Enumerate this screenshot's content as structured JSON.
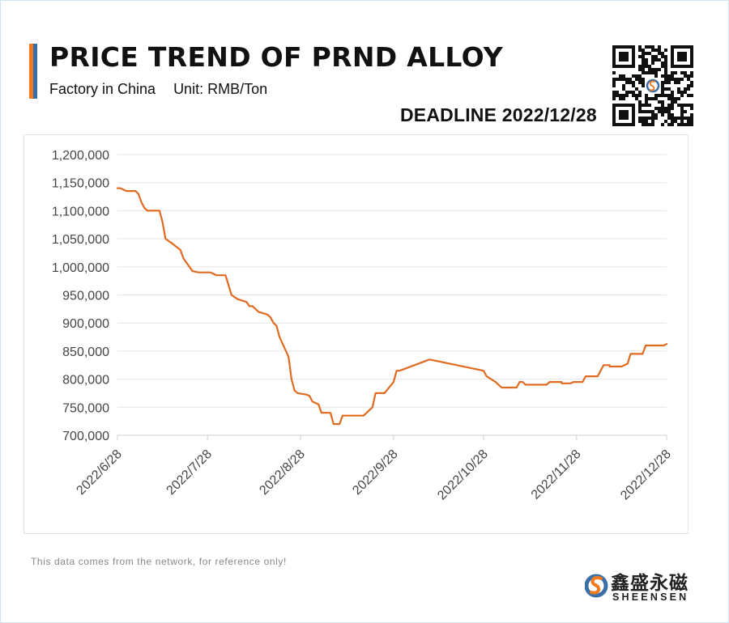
{
  "header": {
    "title": "PRICE TREND OF PRND ALLOY",
    "subtitle_factory": "Factory in China",
    "subtitle_unit": "Unit: RMB/Ton",
    "deadline": "DEADLINE 2022/12/28"
  },
  "footer": {
    "note": "This data comes from the network, for reference only!",
    "brand_cn": "鑫盛永磁",
    "brand_en": "SHEENSEN"
  },
  "colors": {
    "line": "#e06a20",
    "accent_orange": "#f07a20",
    "accent_blue": "#3a6ea8",
    "grid": "#e5e5e5",
    "axis_text": "#444444"
  },
  "icons": {
    "qr": "qr-code-icon",
    "logo": "sheensen-logo-icon"
  },
  "chart_data": {
    "type": "line",
    "title": "PRICE TREND OF PRND ALLOY",
    "xlabel": "",
    "ylabel": "",
    "ylim": [
      700000,
      1200000
    ],
    "y_ticks": [
      700000,
      750000,
      800000,
      850000,
      900000,
      950000,
      1000000,
      1050000,
      1100000,
      1150000,
      1200000
    ],
    "y_tick_labels": [
      "700,000",
      "750,000",
      "800,000",
      "850,000",
      "900,000",
      "950,000",
      "1,000,000",
      "1,050,000",
      "1,100,000",
      "1,150,000",
      "1,200,000"
    ],
    "x_range": [
      "2022-06-28",
      "2022-12-28"
    ],
    "x_tick_labels": [
      "2022/6/28",
      "2022/7/28",
      "2022/8/28",
      "2022/9/28",
      "2022/10/28",
      "2022/11/28",
      "2022/12/28"
    ],
    "x_tick_dates": [
      "2022-06-28",
      "2022-07-28",
      "2022-08-28",
      "2022-09-28",
      "2022-10-28",
      "2022-11-28",
      "2022-12-28"
    ],
    "grid": true,
    "legend": "none",
    "series": [
      {
        "points": [
          [
            "2022-06-28",
            1140000
          ],
          [
            "2022-06-29",
            1140000
          ],
          [
            "2022-06-30",
            1137500
          ],
          [
            "2022-07-01",
            1135000
          ],
          [
            "2022-07-04",
            1135000
          ],
          [
            "2022-07-05",
            1130000
          ],
          [
            "2022-07-06",
            1115000
          ],
          [
            "2022-07-07",
            1105000
          ],
          [
            "2022-07-08",
            1100000
          ],
          [
            "2022-07-12",
            1100000
          ],
          [
            "2022-07-13",
            1080000
          ],
          [
            "2022-07-14",
            1050000
          ],
          [
            "2022-07-16",
            1042500
          ],
          [
            "2022-07-19",
            1030000
          ],
          [
            "2022-07-20",
            1015000
          ],
          [
            "2022-07-22",
            1000000
          ],
          [
            "2022-07-23",
            992500
          ],
          [
            "2022-07-25",
            990000
          ],
          [
            "2022-07-29",
            990000
          ],
          [
            "2022-07-31",
            985000
          ],
          [
            "2022-08-03",
            985000
          ],
          [
            "2022-08-05",
            950000
          ],
          [
            "2022-08-07",
            942500
          ],
          [
            "2022-08-10",
            937500
          ],
          [
            "2022-08-11",
            930000
          ],
          [
            "2022-08-12",
            930000
          ],
          [
            "2022-08-14",
            920000
          ],
          [
            "2022-08-17",
            915000
          ],
          [
            "2022-08-18",
            910000
          ],
          [
            "2022-08-19",
            900000
          ],
          [
            "2022-08-20",
            895000
          ],
          [
            "2022-08-21",
            875000
          ],
          [
            "2022-08-24",
            840000
          ],
          [
            "2022-08-25",
            800000
          ],
          [
            "2022-08-26",
            780000
          ],
          [
            "2022-08-27",
            775000
          ],
          [
            "2022-08-30",
            772500
          ],
          [
            "2022-08-31",
            770000
          ],
          [
            "2022-09-01",
            760000
          ],
          [
            "2022-09-03",
            755000
          ],
          [
            "2022-09-04",
            740000
          ],
          [
            "2022-09-07",
            740000
          ],
          [
            "2022-09-08",
            720000
          ],
          [
            "2022-09-10",
            720000
          ],
          [
            "2022-09-11",
            735000
          ],
          [
            "2022-09-18",
            735000
          ],
          [
            "2022-09-21",
            750000
          ],
          [
            "2022-09-22",
            775000
          ],
          [
            "2022-09-25",
            775000
          ],
          [
            "2022-09-28",
            795000
          ],
          [
            "2022-09-29",
            815000
          ],
          [
            "2022-09-30",
            815000
          ],
          [
            "2022-10-10",
            835000
          ],
          [
            "2022-10-28",
            815000
          ],
          [
            "2022-10-29",
            805000
          ],
          [
            "2022-11-01",
            795000
          ],
          [
            "2022-11-03",
            785000
          ],
          [
            "2022-11-08",
            785000
          ],
          [
            "2022-11-09",
            795000
          ],
          [
            "2022-11-10",
            795000
          ],
          [
            "2022-11-11",
            790000
          ],
          [
            "2022-11-18",
            790000
          ],
          [
            "2022-11-19",
            795000
          ],
          [
            "2022-11-23",
            795000
          ],
          [
            "2022-11-23",
            792500
          ],
          [
            "2022-11-26",
            792500
          ],
          [
            "2022-11-27",
            795000
          ],
          [
            "2022-11-30",
            795000
          ],
          [
            "2022-12-01",
            805000
          ],
          [
            "2022-12-05",
            805000
          ],
          [
            "2022-12-07",
            825000
          ],
          [
            "2022-12-09",
            825000
          ],
          [
            "2022-12-09",
            822500
          ],
          [
            "2022-12-13",
            822500
          ],
          [
            "2022-12-15",
            827500
          ],
          [
            "2022-12-16",
            845000
          ],
          [
            "2022-12-20",
            845000
          ],
          [
            "2022-12-21",
            860000
          ],
          [
            "2022-12-27",
            860000
          ],
          [
            "2022-12-28",
            862500
          ]
        ]
      }
    ]
  }
}
